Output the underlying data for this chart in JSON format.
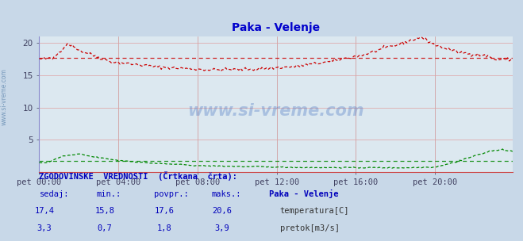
{
  "title": "Paka - Velenje",
  "title_color": "#0000cc",
  "bg_color": "#c8d8e8",
  "plot_bg_color": "#dce8f0",
  "grid_color_h": "#e08080",
  "grid_color_v": "#b0b8c8",
  "x_label_color": "#404060",
  "y_label_color": "#404060",
  "temp_color": "#cc0000",
  "flow_color": "#008800",
  "xlabel_ticks": [
    "pet 00:00",
    "pet 04:00",
    "pet 08:00",
    "pet 12:00",
    "pet 16:00",
    "pet 20:00"
  ],
  "ylim": [
    0,
    21
  ],
  "temp_avg": 17.6,
  "flow_avg": 1.8,
  "stats_title": "ZGODOVINSKE  VREDNOSTI  (Črtkana  črta):",
  "col_sedaj": "sedaj:",
  "col_min": "min.:",
  "col_povpr": "povpr.:",
  "col_maks": "maks.:",
  "station": "Paka - Velenje",
  "temp_sedaj": "17,4",
  "temp_min": "15,8",
  "temp_povpr": "17,6",
  "temp_maks": "20,6",
  "flow_sedaj": "3,3",
  "flow_min": "0,7",
  "flow_povpr": "1,8",
  "flow_maks": "3,9",
  "label_temp": "temperatura[C]",
  "label_flow": "pretok[m3/s]",
  "watermark": "www.si-vreme.com",
  "sidebar_text": "www.si-vreme.com",
  "blue_text": "#0000bb",
  "dark_text": "#333333"
}
